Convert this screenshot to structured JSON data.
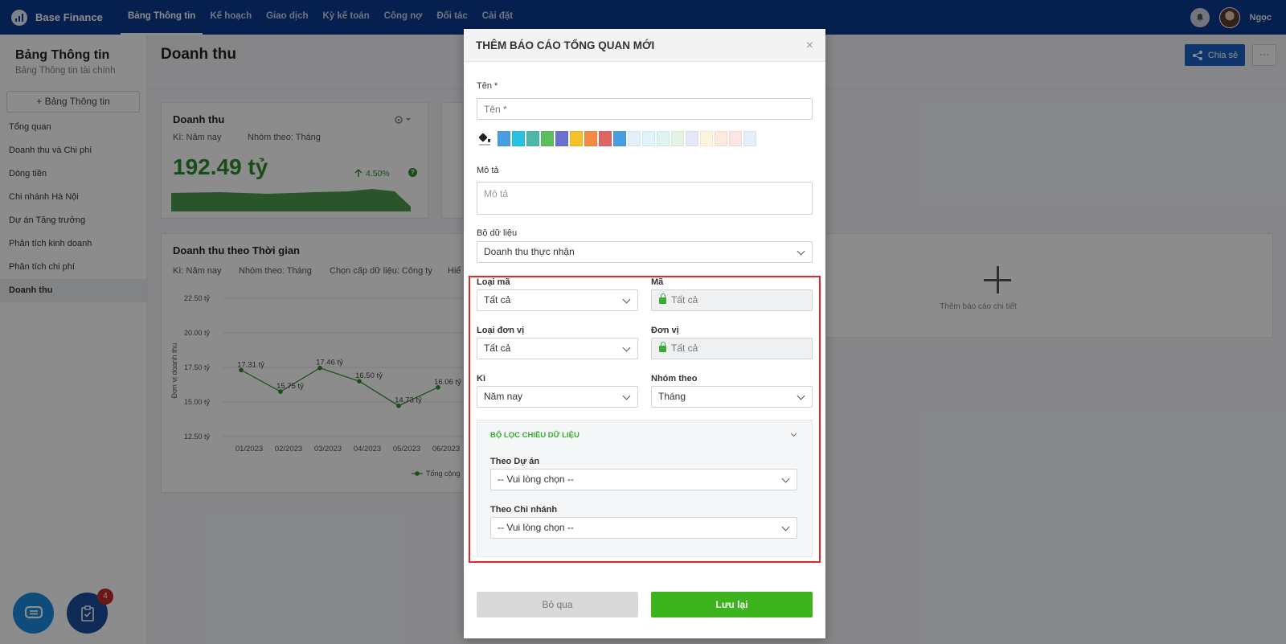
{
  "app": {
    "brand": "Base Finance",
    "nav": [
      "Bảng Thông tin",
      "Kế hoạch",
      "Giao dịch",
      "Kỳ kế toán",
      "Công nợ",
      "Đối tác",
      "Cài đặt"
    ],
    "user": "Ngọc"
  },
  "sidebar": {
    "title": "Bảng Thông tin",
    "subtitle": "Bảng Thông tin tài chính",
    "add_label": "+ Bảng Thông tin",
    "items": [
      {
        "label": "Tổng quan"
      },
      {
        "label": "Doanh thu và Chi phí"
      },
      {
        "label": "Dòng tiền"
      },
      {
        "label": "Chi nhánh Hà Nội"
      },
      {
        "label": "Dự án Tăng trưởng"
      },
      {
        "label": "Phân tích kinh doanh"
      },
      {
        "label": "Phân tích chi phí"
      },
      {
        "label": "Doanh thu",
        "active": true
      }
    ]
  },
  "main": {
    "title": "Doanh thu",
    "share_label": "Chia sẻ",
    "more_label": "···",
    "card_revenue": {
      "title": "Doanh thu",
      "filter_period": "Kì: Năm nay",
      "filter_group": "Nhóm theo: Tháng",
      "value": "192.49 tỷ",
      "change": "4.50%",
      "help": "?"
    },
    "card_time": {
      "title": "Doanh thu theo Thời gian",
      "filter_period": "Kì: Năm nay",
      "filter_group": "Nhóm theo: Tháng",
      "filter_level": "Chọn cấp dữ liệu: Công ty",
      "filter_more": "Hiể"
    },
    "add_detail_label": "Thêm báo cáo chi tiết"
  },
  "chart_data": {
    "type": "line",
    "x": [
      "01/2023",
      "02/2023",
      "03/2023",
      "04/2023",
      "05/2023",
      "06/2023"
    ],
    "series": [
      {
        "name": "Tổng cộng",
        "values": [
          17.31,
          15.75,
          17.46,
          16.5,
          14.73,
          16.06
        ]
      }
    ],
    "data_labels": [
      "17.31 tỷ",
      "15.75 tỷ",
      "17.46 tỷ",
      "16.50 tỷ",
      "14.73 tỷ",
      "16.06 tỷ"
    ],
    "yticks": [
      "12.50 tỷ",
      "15.00 tỷ",
      "17.50 tỷ",
      "20.00 tỷ",
      "22.50 tỷ"
    ],
    "ylim": [
      12.5,
      22.5
    ],
    "ylabel": "Đơn vị doanh thu",
    "legend": "Tổng cộng",
    "color": "#2e8b2e"
  },
  "fab": {
    "task_badge": "4"
  },
  "modal": {
    "title": "THÊM BÁO CÁO TỔNG QUAN MỚI",
    "close": "×",
    "name_label": "Tên *",
    "name_placeholder": "Tên *",
    "colors": [
      "#4a9de0",
      "#26c2e0",
      "#4db8a8",
      "#5cbf5c",
      "#6c70cf",
      "#f5c02a",
      "#f58a42",
      "#e06464",
      "#4a9de0",
      "#e3effb",
      "#dff4fb",
      "#dff3f0",
      "#e4f4e4",
      "#e7e8f7",
      "#fdf5dc",
      "#fde9dd",
      "#fbe5e5",
      "#e3effb"
    ],
    "desc_label": "Mô tả",
    "desc_placeholder": "Mô tả",
    "dataset_label": "Bộ dữ liệu",
    "dataset_value": "Doanh thu thực nhận",
    "code_type_label": "Loại mã",
    "code_type_value": "Tất cả",
    "code_label": "Mã",
    "code_value": "Tất cả",
    "unit_type_label": "Loại đơn vị",
    "unit_type_value": "Tất cả",
    "unit_label": "Đơn vị",
    "unit_value": "Tất cả",
    "period_label": "Kì",
    "period_value": "Năm nay",
    "group_label": "Nhóm theo",
    "group_value": "Tháng",
    "filter_title": "BỘ LỌC CHIỀU DỮ LIỆU",
    "project_label": "Theo Dự án",
    "project_value": "-- Vui lòng chọn --",
    "branch_label": "Theo Chi nhánh",
    "branch_value": "-- Vui lòng chọn --",
    "cancel_label": "Bỏ qua",
    "save_label": "Lưu lại"
  }
}
